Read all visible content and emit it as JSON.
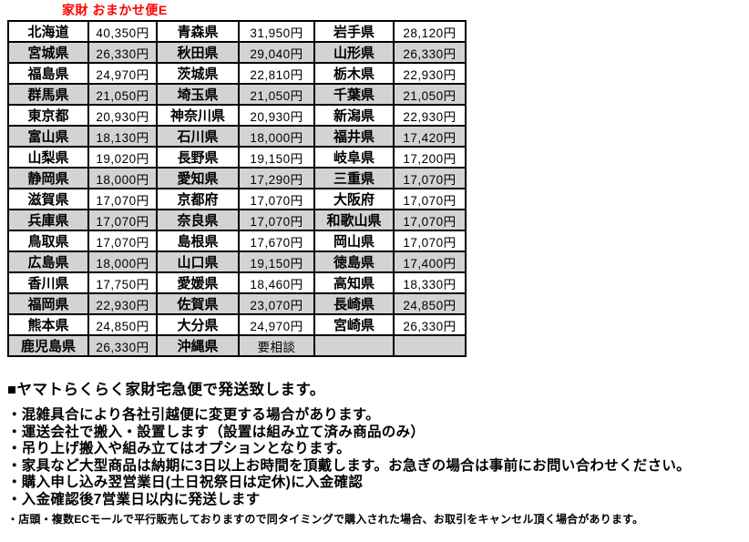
{
  "page": {
    "title": "家財 おまかせ便E",
    "title_color": "#ff0000"
  },
  "table": {
    "description": "prefecture-shipping-fee-table",
    "shading_color": "#d3d3d3",
    "border_color": "#000000",
    "rows": [
      {
        "shaded": false,
        "cells": [
          "北海道",
          "40,350円",
          "青森県",
          "31,950円",
          "岩手県",
          "28,120円"
        ]
      },
      {
        "shaded": true,
        "cells": [
          "宮城県",
          "26,330円",
          "秋田県",
          "29,040円",
          "山形県",
          "26,330円"
        ]
      },
      {
        "shaded": false,
        "cells": [
          "福島県",
          "24,970円",
          "茨城県",
          "22,810円",
          "栃木県",
          "22,930円"
        ]
      },
      {
        "shaded": true,
        "cells": [
          "群馬県",
          "21,050円",
          "埼玉県",
          "21,050円",
          "千葉県",
          "21,050円"
        ]
      },
      {
        "shaded": false,
        "cells": [
          "東京都",
          "20,930円",
          "神奈川県",
          "20,930円",
          "新潟県",
          "22,930円"
        ]
      },
      {
        "shaded": true,
        "cells": [
          "富山県",
          "18,130円",
          "石川県",
          "18,000円",
          "福井県",
          "17,420円"
        ]
      },
      {
        "shaded": false,
        "cells": [
          "山梨県",
          "19,020円",
          "長野県",
          "19,150円",
          "岐阜県",
          "17,200円"
        ]
      },
      {
        "shaded": true,
        "cells": [
          "静岡県",
          "18,000円",
          "愛知県",
          "17,290円",
          "三重県",
          "17,070円"
        ]
      },
      {
        "shaded": false,
        "cells": [
          "滋賀県",
          "17,070円",
          "京都府",
          "17,070円",
          "大阪府",
          "17,070円"
        ]
      },
      {
        "shaded": true,
        "cells": [
          "兵庫県",
          "17,070円",
          "奈良県",
          "17,070円",
          "和歌山県",
          "17,070円"
        ]
      },
      {
        "shaded": false,
        "cells": [
          "鳥取県",
          "17,070円",
          "島根県",
          "17,670円",
          "岡山県",
          "17,070円"
        ]
      },
      {
        "shaded": true,
        "cells": [
          "広島県",
          "18,000円",
          "山口県",
          "19,150円",
          "徳島県",
          "17,400円"
        ]
      },
      {
        "shaded": false,
        "cells": [
          "香川県",
          "17,750円",
          "愛媛県",
          "18,460円",
          "高知県",
          "18,330円"
        ]
      },
      {
        "shaded": true,
        "cells": [
          "福岡県",
          "22,930円",
          "佐賀県",
          "23,070円",
          "長崎県",
          "24,850円"
        ]
      },
      {
        "shaded": false,
        "cells": [
          "熊本県",
          "24,850円",
          "大分県",
          "24,970円",
          "宮崎県",
          "26,330円"
        ]
      },
      {
        "shaded": true,
        "cells": [
          "鹿児島県",
          "26,330円",
          "沖縄県",
          "要相談",
          "",
          ""
        ]
      }
    ]
  },
  "notes": {
    "heading": "■ヤマトらくらく家財宅急便で発送致します。",
    "bullets": [
      "・混雑具合により各社引越便に変更する場合があります。",
      "・運送会社で搬入・設置します（設置は組み立て済み商品のみ）",
      "・吊り上げ搬入や組み立てはオプションとなります。",
      "・家具など大型商品は納期に3日以上お時間を頂戴します。お急ぎの場合は事前にお問い合わせください。",
      "・購入申し込み翌営業日(土日祝祭日は定休)に入金確認",
      "・入金確認後7営業日以内に発送します"
    ],
    "footnote": "・店頭・複数ECモールで平行販売しておりますので同タイミングで購入された場合、お取引をキャンセル頂く場合があります。"
  }
}
